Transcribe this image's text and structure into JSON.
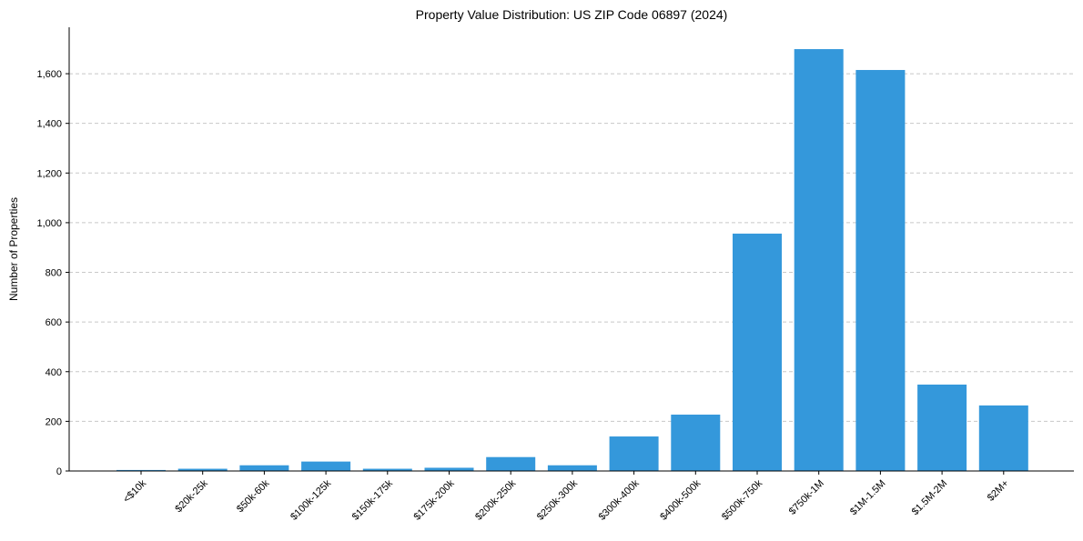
{
  "chart_data": {
    "type": "bar",
    "title": "Property Value Distribution: US ZIP Code 06897 (2024)",
    "xlabel": "",
    "ylabel": "Number of Properties",
    "categories": [
      "<$10k",
      "$20k-25k",
      "$50k-60k",
      "$100k-125k",
      "$150k-175k",
      "$175k-200k",
      "$200k-250k",
      "$250k-300k",
      "$300k-400k",
      "$400k-500k",
      "$500k-750k",
      "$750k-1M",
      "$1M-1.5M",
      "$1.5M-2M",
      "$2M+"
    ],
    "values": [
      4,
      9,
      23,
      38,
      9,
      13,
      56,
      23,
      139,
      227,
      956,
      1699,
      1615,
      348,
      264
    ],
    "ylim": [
      0,
      1787
    ],
    "yticks": [
      0,
      200,
      400,
      600,
      800,
      1000,
      1200,
      1400,
      1600
    ],
    "ytick_labels": [
      "0",
      "200",
      "400",
      "600",
      "800",
      "1,000",
      "1,200",
      "1,400",
      "1,600"
    ],
    "grid": "y-dashed",
    "bar_color": "#3498db"
  }
}
